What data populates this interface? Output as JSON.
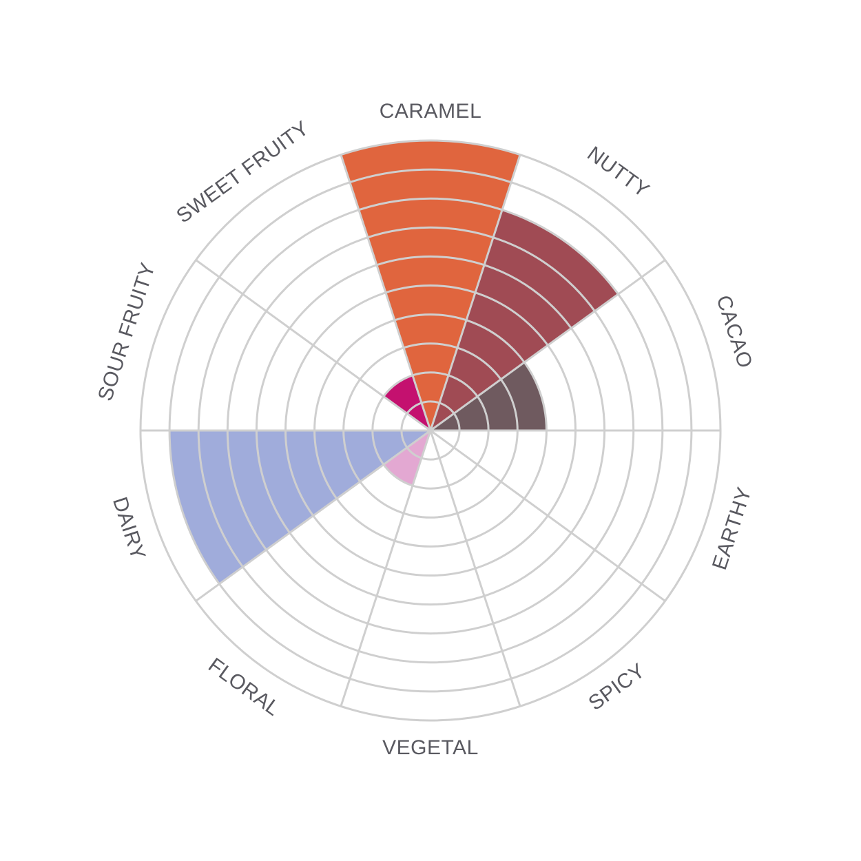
{
  "chart_data": {
    "type": "polar-area",
    "title": "",
    "max_value": 10,
    "rings": 10,
    "grid": true,
    "categories": [
      {
        "label": "CARAMEL",
        "value": 10,
        "color": "#e0653e"
      },
      {
        "label": "NUTTY",
        "value": 8,
        "color": "#a04b54"
      },
      {
        "label": "CACAO",
        "value": 4,
        "color": "#6f5a5f"
      },
      {
        "label": "EARTHY",
        "value": 0,
        "color": "#cccccc"
      },
      {
        "label": "SPICY",
        "value": 0,
        "color": "#cccccc"
      },
      {
        "label": "VEGETAL",
        "value": 0,
        "color": "#cccccc"
      },
      {
        "label": "FLORAL",
        "value": 2,
        "color": "#e3a8d2"
      },
      {
        "label": "DAIRY",
        "value": 9,
        "color": "#a0acdb"
      },
      {
        "label": "SOUR FRUITY",
        "value": 0,
        "color": "#cccccc"
      },
      {
        "label": "SWEET FRUITY",
        "value": 2,
        "color": "#c4116f"
      }
    ],
    "grid_color": "#cfcfcf"
  }
}
